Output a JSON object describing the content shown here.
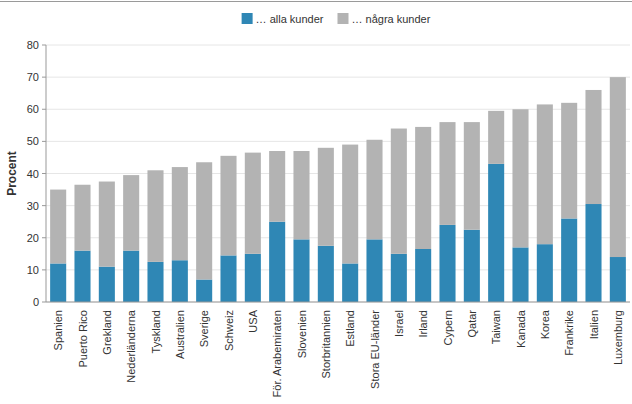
{
  "chart_data": {
    "type": "bar",
    "stacked": true,
    "grid": true,
    "legend": "top",
    "y_label": "Procent",
    "categories": [
      "Spanien",
      "Puerto Rico",
      "Grekland",
      "Nederländerna",
      "Tyskland",
      "Australien",
      "Sverige",
      "Schweiz",
      "USA",
      "För. Arabemiraten",
      "Slovenien",
      "Storbritannien",
      "Estland",
      "Stora EU-länder",
      "Israel",
      "Irland",
      "Cypern",
      "Qatar",
      "Taiwan",
      "Kanada",
      "Korea",
      "Frankrike",
      "Italien",
      "Luxemburg"
    ],
    "series": [
      {
        "name": "… alla kunder",
        "color": "#2f87b5",
        "values": [
          12,
          16,
          11,
          16,
          12.5,
          13,
          7,
          14.5,
          15,
          25,
          19.5,
          17.5,
          12,
          19.5,
          15,
          16.5,
          24,
          22.5,
          43,
          17,
          18,
          26,
          30.5,
          14
        ]
      },
      {
        "name": "… några kunder",
        "color": "#b3b3b3",
        "values": [
          23,
          20.5,
          26.5,
          23.5,
          28.5,
          29,
          36.5,
          31,
          31.5,
          22,
          27.5,
          30.5,
          37,
          31,
          39,
          38,
          32,
          33.5,
          16.5,
          43,
          43.5,
          36,
          35.5,
          56
        ]
      }
    ],
    "ylim": [
      0,
      80
    ],
    "yticks": [
      0,
      10,
      20,
      30,
      40,
      50,
      60,
      70,
      80
    ]
  }
}
